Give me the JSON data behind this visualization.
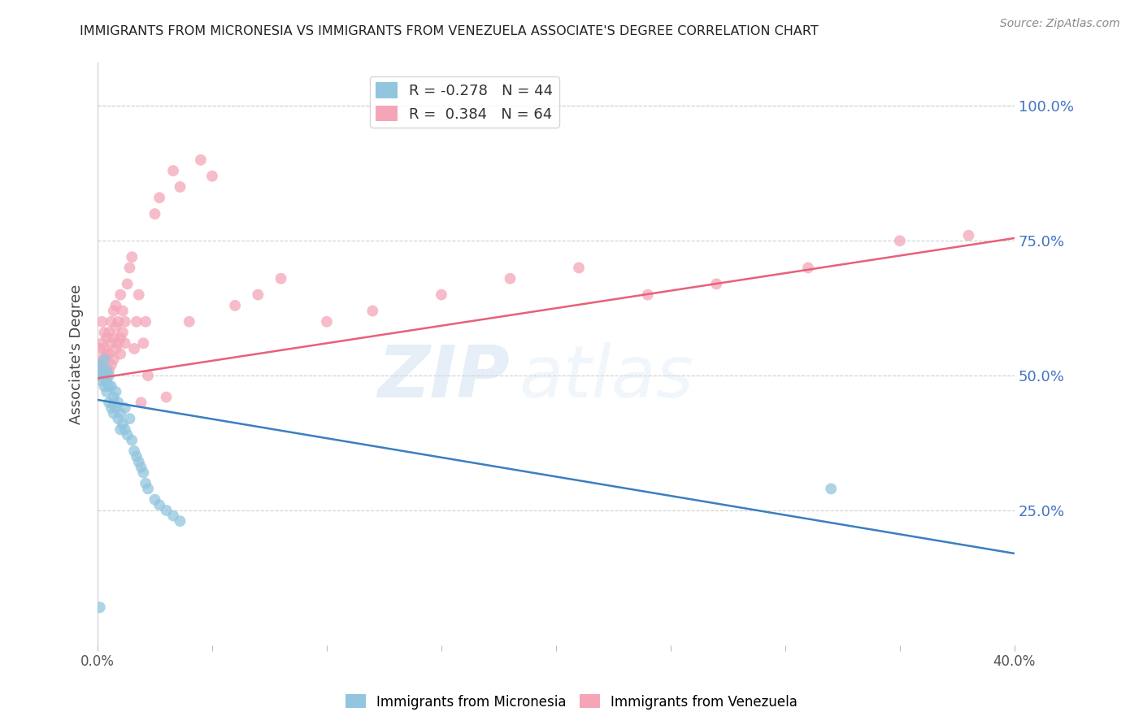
{
  "title": "IMMIGRANTS FROM MICRONESIA VS IMMIGRANTS FROM VENEZUELA ASSOCIATE'S DEGREE CORRELATION CHART",
  "source": "Source: ZipAtlas.com",
  "ylabel": "Associate's Degree",
  "right_yticks": [
    "100.0%",
    "75.0%",
    "50.0%",
    "25.0%"
  ],
  "right_ytick_vals": [
    1.0,
    0.75,
    0.5,
    0.25
  ],
  "xlim": [
    0.0,
    0.4
  ],
  "ylim": [
    0.0,
    1.08
  ],
  "blue_R": -0.278,
  "blue_N": 44,
  "pink_R": 0.384,
  "pink_N": 64,
  "blue_color": "#92c5de",
  "pink_color": "#f4a6b8",
  "blue_line_color": "#3a7fc1",
  "pink_line_color": "#e8607a",
  "watermark_zip": "ZIP",
  "watermark_atlas": "atlas",
  "legend_label_blue": "Immigrants from Micronesia",
  "legend_label_pink": "Immigrants from Venezuela",
  "blue_scatter_x": [
    0.001,
    0.001,
    0.002,
    0.002,
    0.003,
    0.003,
    0.003,
    0.004,
    0.004,
    0.004,
    0.005,
    0.005,
    0.005,
    0.006,
    0.006,
    0.007,
    0.007,
    0.007,
    0.008,
    0.008,
    0.009,
    0.009,
    0.01,
    0.01,
    0.011,
    0.012,
    0.012,
    0.013,
    0.014,
    0.015,
    0.016,
    0.017,
    0.018,
    0.019,
    0.02,
    0.021,
    0.022,
    0.025,
    0.027,
    0.03,
    0.033,
    0.036,
    0.32,
    0.001
  ],
  "blue_scatter_y": [
    0.5,
    0.52,
    0.49,
    0.51,
    0.5,
    0.48,
    0.53,
    0.49,
    0.51,
    0.47,
    0.5,
    0.45,
    0.48,
    0.44,
    0.48,
    0.45,
    0.43,
    0.46,
    0.44,
    0.47,
    0.42,
    0.45,
    0.4,
    0.43,
    0.41,
    0.4,
    0.44,
    0.39,
    0.42,
    0.38,
    0.36,
    0.35,
    0.34,
    0.33,
    0.32,
    0.3,
    0.29,
    0.27,
    0.26,
    0.25,
    0.24,
    0.23,
    0.29,
    0.07
  ],
  "pink_scatter_x": [
    0.001,
    0.001,
    0.001,
    0.002,
    0.002,
    0.002,
    0.003,
    0.003,
    0.003,
    0.004,
    0.004,
    0.004,
    0.005,
    0.005,
    0.005,
    0.006,
    0.006,
    0.006,
    0.007,
    0.007,
    0.007,
    0.008,
    0.008,
    0.008,
    0.009,
    0.009,
    0.01,
    0.01,
    0.01,
    0.011,
    0.011,
    0.012,
    0.012,
    0.013,
    0.014,
    0.015,
    0.016,
    0.017,
    0.018,
    0.019,
    0.02,
    0.021,
    0.022,
    0.025,
    0.027,
    0.03,
    0.033,
    0.036,
    0.04,
    0.045,
    0.05,
    0.06,
    0.07,
    0.08,
    0.1,
    0.12,
    0.15,
    0.18,
    0.21,
    0.24,
    0.27,
    0.31,
    0.35,
    0.38
  ],
  "pink_scatter_y": [
    0.5,
    0.52,
    0.55,
    0.53,
    0.56,
    0.6,
    0.52,
    0.55,
    0.58,
    0.5,
    0.54,
    0.57,
    0.51,
    0.54,
    0.58,
    0.52,
    0.56,
    0.6,
    0.53,
    0.57,
    0.62,
    0.55,
    0.59,
    0.63,
    0.56,
    0.6,
    0.54,
    0.57,
    0.65,
    0.58,
    0.62,
    0.56,
    0.6,
    0.67,
    0.7,
    0.72,
    0.55,
    0.6,
    0.65,
    0.45,
    0.56,
    0.6,
    0.5,
    0.8,
    0.83,
    0.46,
    0.88,
    0.85,
    0.6,
    0.9,
    0.87,
    0.63,
    0.65,
    0.68,
    0.6,
    0.62,
    0.65,
    0.68,
    0.7,
    0.65,
    0.67,
    0.7,
    0.75,
    0.76
  ],
  "blue_line_x0": 0.0,
  "blue_line_x1": 0.4,
  "blue_line_y0": 0.455,
  "blue_line_y1": 0.17,
  "pink_line_x0": 0.0,
  "pink_line_x1": 0.4,
  "pink_line_y0": 0.495,
  "pink_line_y1": 0.755
}
